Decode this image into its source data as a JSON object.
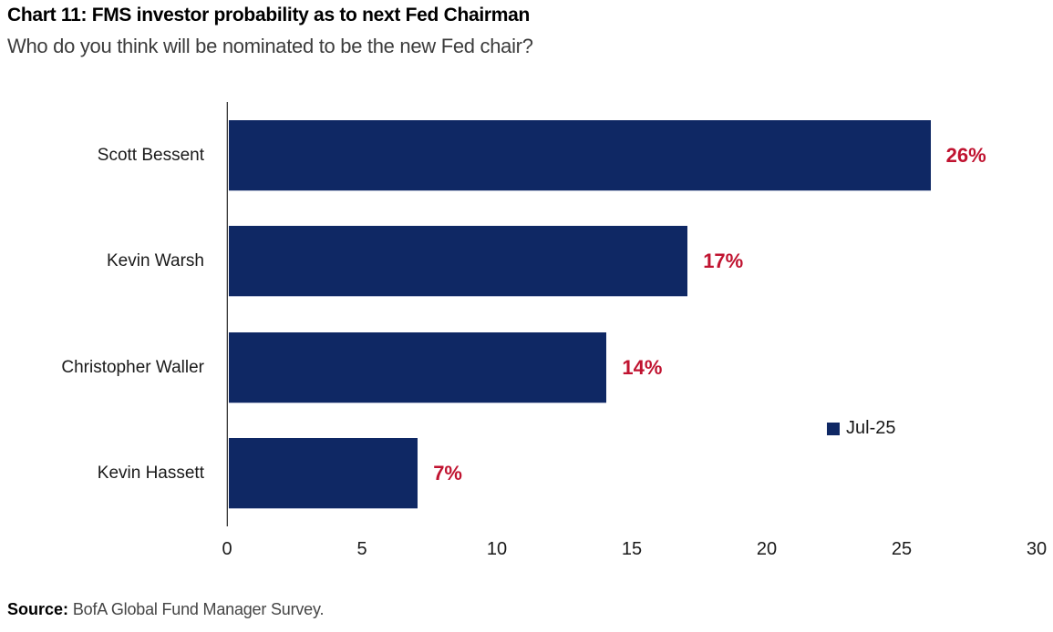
{
  "header": {
    "title": "Chart 11: FMS investor probability as to next Fed Chairman",
    "subtitle": "Who do you think will be nominated to be the new Fed chair?"
  },
  "chart_data": {
    "type": "bar",
    "orientation": "horizontal",
    "title": "Chart 11: FMS investor probability as to next Fed Chairman",
    "subtitle": "Who do you think will be nominated to be the new Fed chair?",
    "categories": [
      "Scott Bessent",
      "Kevin Warsh",
      "Christopher Waller",
      "Kevin Hassett"
    ],
    "values": [
      26,
      17,
      14,
      7
    ],
    "data_labels": [
      "26%",
      "17%",
      "14%",
      "7%"
    ],
    "series": [
      {
        "name": "Jul-25",
        "values": [
          26,
          17,
          14,
          7
        ]
      }
    ],
    "x_ticks": [
      "0",
      "5",
      "10",
      "15",
      "20",
      "25",
      "30"
    ],
    "xlim": [
      0,
      30
    ],
    "xlabel": "",
    "ylabel": "",
    "grid": false,
    "legend_position": "right-middle",
    "bar_color": "#0F2864",
    "data_label_color": "#C01330",
    "axis_color": "#3a3a3a"
  },
  "legend": {
    "label": "Jul-25",
    "swatch_color": "#0F2864"
  },
  "footer": {
    "source_label": "Source:",
    "source_text": " BofA Global Fund Manager Survey."
  }
}
